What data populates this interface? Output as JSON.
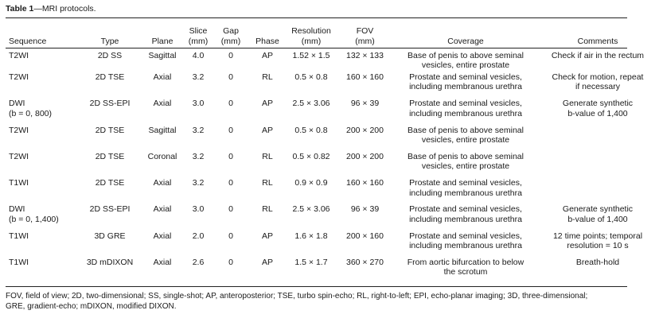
{
  "caption": {
    "label": "Table 1",
    "text": "—MRI protocols."
  },
  "columns": [
    "Sequence",
    "Type",
    "Plane",
    "Slice\n(mm)",
    "Gap\n(mm)",
    "Phase",
    "Resolution\n(mm)",
    "FOV\n(mm)",
    "Coverage",
    "Comments"
  ],
  "rows": [
    [
      "T2WI",
      "2D SS",
      "Sagittal",
      "4.0",
      "0",
      "AP",
      "1.52 × 1.5",
      "132 × 133",
      "Base of penis to above seminal\nvesicles, entire prostate",
      "Check if air in the rectum"
    ],
    [
      "T2WI",
      "2D TSE",
      "Axial",
      "3.2",
      "0",
      "RL",
      "0.5 × 0.8",
      "160 × 160",
      "Prostate and seminal vesicles,\nincluding membranous urethra",
      "Check for motion, repeat\nif necessary"
    ],
    [
      "DWI\n(b = 0, 800)",
      "2D SS-EPI",
      "Axial",
      "3.0",
      "0",
      "AP",
      "2.5 × 3.06",
      "96 × 39",
      "Prostate and seminal vesicles,\nincluding membranous urethra",
      "Generate synthetic\nb-value of 1,400"
    ],
    [
      "T2WI",
      "2D TSE",
      "Sagittal",
      "3.2",
      "0",
      "AP",
      "0.5 × 0.8",
      "200 × 200",
      "Base of penis to above seminal\nvesicles, entire prostate",
      ""
    ],
    [
      "T2WI",
      "2D TSE",
      "Coronal",
      "3.2",
      "0",
      "RL",
      "0.5 × 0.82",
      "200 × 200",
      "Base of penis to above seminal\nvesicles, entire prostate",
      ""
    ],
    [
      "T1WI",
      "2D TSE",
      "Axial",
      "3.2",
      "0",
      "RL",
      "0.9 × 0.9",
      "160 × 160",
      "Prostate and seminal vesicles,\nincluding membranous urethra",
      ""
    ],
    [
      "DWI\n(b = 0, 1,400)",
      "2D SS-EPI",
      "Axial",
      "3.0",
      "0",
      "RL",
      "2.5 × 3.06",
      "96 × 39",
      "Prostate and seminal vesicles,\nincluding membranous urethra",
      "Generate synthetic\nb-value of 1,400"
    ],
    [
      "T1WI",
      "3D GRE",
      "Axial",
      "2.0",
      "0",
      "AP",
      "1.6 × 1.8",
      "200 × 160",
      "Prostate and seminal vesicles,\nincluding membranous urethra",
      "12 time points; temporal\nresolution = 10 s"
    ],
    [
      "T1WI",
      "3D mDIXON",
      "Axial",
      "2.6",
      "0",
      "AP",
      "1.5 × 1.7",
      "360 × 270",
      "From aortic bifurcation to below\nthe scrotum",
      "Breath-hold"
    ]
  ],
  "footnote": "FOV, field of view; 2D, two-dimensional; SS, single-shot; AP, anteroposterior; TSE, turbo spin-echo; RL, right-to-left; EPI, echo-planar imaging; 3D, three-dimensional;\nGRE, gradient-echo; mDIXON, modified DIXON."
}
